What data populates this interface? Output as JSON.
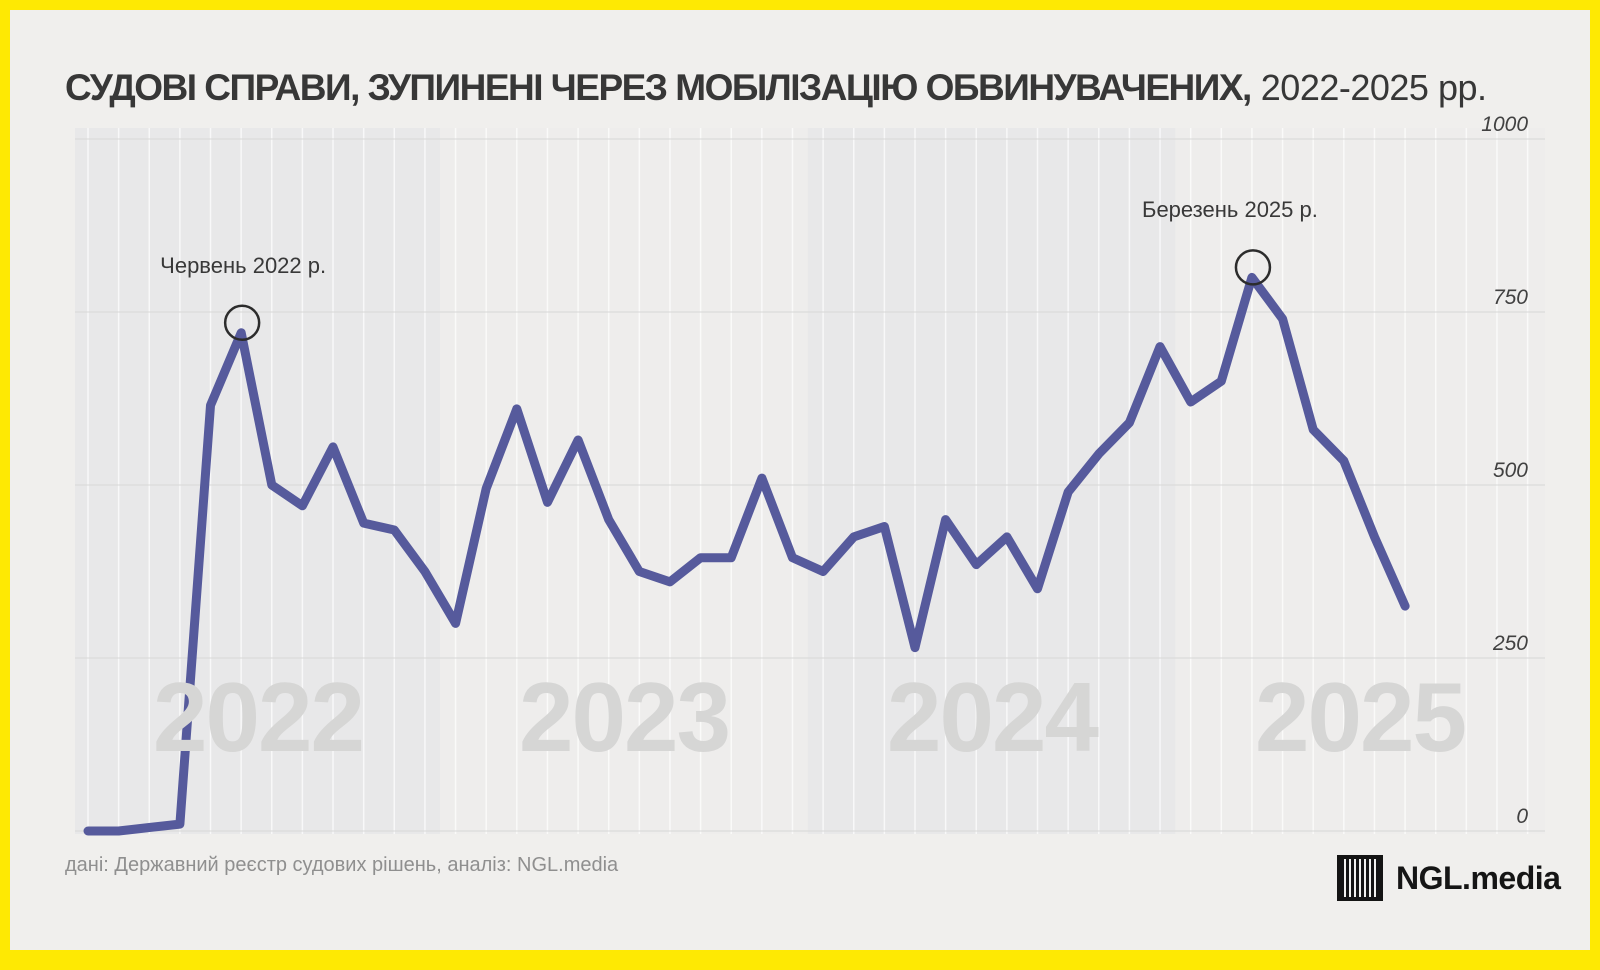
{
  "title": {
    "main": "СУДОВІ СПРАВИ, ЗУПИНЕНІ ЧЕРЕЗ МОБІЛІЗАЦІЮ ОБВИНУВАЧЕНИХ,",
    "period": "2022-2025 рр."
  },
  "y_axis": {
    "ticks": [
      0,
      250,
      500,
      750,
      1000
    ],
    "max": 1000
  },
  "year_labels": [
    "2022",
    "2023",
    "2024",
    "2025"
  ],
  "annotations": [
    {
      "label": "Червень 2022 р.",
      "month": "2022-06",
      "month_index": 5,
      "label_dx": 2
    },
    {
      "label": "Березень 2025 р.",
      "month": "2025-03",
      "month_index": 38,
      "label_dx": -22
    }
  ],
  "footer": {
    "source": "дані: Державний реєстр судових рішень, аналіз: NGL.media"
  },
  "logo": {
    "text": "NGL.media",
    "icon": "barcode-icon"
  },
  "colors": {
    "frame": "#fee903",
    "background": "#f0efed",
    "band_dark": "#e8e8e9",
    "band_light": "#eeedec",
    "line": "#565a9c",
    "gridline": "#d7d7d6",
    "month_gridline": "rgba(255,255,255,0.7)",
    "annotation_circle": "#2c2c2c",
    "year_watermark": "#d6d6d5"
  },
  "chart_data": {
    "type": "line",
    "title": "Судові справи, зупинені через мобілізацію обвинувачених, 2022-2025 рр.",
    "ylabel": "",
    "xlabel": "",
    "ylim": [
      0,
      1000
    ],
    "grid": true,
    "months": [
      "2022-01",
      "2022-02",
      "2022-03",
      "2022-04",
      "2022-05",
      "2022-06",
      "2022-07",
      "2022-08",
      "2022-09",
      "2022-10",
      "2022-11",
      "2022-12",
      "2023-01",
      "2023-02",
      "2023-03",
      "2023-04",
      "2023-05",
      "2023-06",
      "2023-07",
      "2023-08",
      "2023-09",
      "2023-10",
      "2023-11",
      "2023-12",
      "2024-01",
      "2024-02",
      "2024-03",
      "2024-04",
      "2024-05",
      "2024-06",
      "2024-07",
      "2024-08",
      "2024-09",
      "2024-10",
      "2024-11",
      "2024-12",
      "2025-01",
      "2025-02",
      "2025-03",
      "2025-04",
      "2025-05",
      "2025-06",
      "2025-07",
      "2025-08"
    ],
    "values": [
      0,
      0,
      5,
      10,
      615,
      720,
      500,
      470,
      555,
      445,
      435,
      375,
      300,
      495,
      610,
      475,
      565,
      450,
      375,
      360,
      395,
      395,
      510,
      395,
      375,
      425,
      440,
      265,
      450,
      385,
      425,
      350,
      490,
      545,
      590,
      700,
      620,
      650,
      800,
      740,
      580,
      535,
      425,
      325
    ],
    "year_month_counts": {
      "2022": 12,
      "2023": 12,
      "2024": 12,
      "2025": 8
    },
    "annotated_points": [
      {
        "month": "2022-06",
        "value": 720,
        "label": "Червень 2022 р."
      },
      {
        "month": "2025-03",
        "value": 800,
        "label": "Березень 2025 р."
      }
    ]
  }
}
